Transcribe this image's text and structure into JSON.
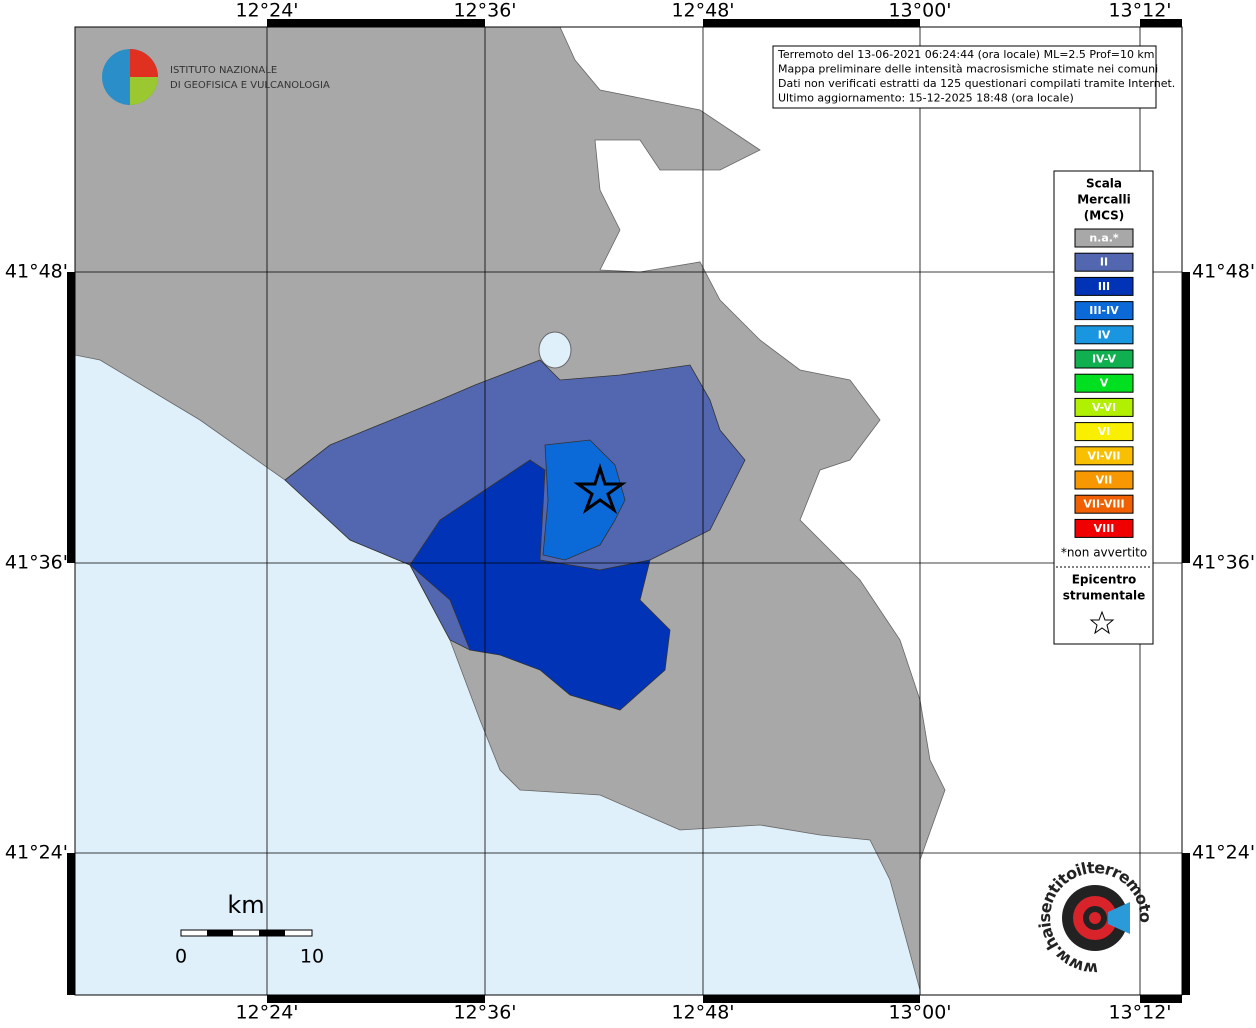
{
  "header": {
    "institute": [
      "ISTITUTO NAZIONALE",
      "DI GEOFISICA E VULCANOLOGIA"
    ],
    "info": [
      "Terremoto del 13-06-2021 06:24:44 (ora locale) ML=2.5 Prof=10 km",
      "Mappa preliminare delle intensità macrosismiche stimate nei comuni",
      "Dati non verificati estratti da 125 questionari compilati tramite Internet.",
      "Ultimo aggiornamento: 15-12-2025 18:48 (ora locale)"
    ]
  },
  "axes": {
    "longitudes": [
      "12°24'",
      "12°36'",
      "12°48'",
      "13°00'",
      "13°12'"
    ],
    "latitudes": [
      "41°48'",
      "41°36'",
      "41°24'"
    ]
  },
  "legend": {
    "title": [
      "Scala",
      "Mercalli",
      "(MCS)"
    ],
    "items": [
      {
        "label": "n.a.*",
        "color": "#a8a8a8"
      },
      {
        "label": "II",
        "color": "#5366b0"
      },
      {
        "label": "III",
        "color": "#0033b5"
      },
      {
        "label": "III-IV",
        "color": "#0b69d8"
      },
      {
        "label": "IV",
        "color": "#1a96e0"
      },
      {
        "label": "IV-V",
        "color": "#10b050"
      },
      {
        "label": "V",
        "color": "#00e020"
      },
      {
        "label": "V-VI",
        "color": "#b0f000"
      },
      {
        "label": "VI",
        "color": "#f8f000"
      },
      {
        "label": "VI-VII",
        "color": "#f8c000"
      },
      {
        "label": "VII",
        "color": "#f89800"
      },
      {
        "label": "VII-VIII",
        "color": "#f06000"
      },
      {
        "label": "VIII",
        "color": "#f00000"
      }
    ],
    "note": "*non avvertito",
    "epicenter": [
      "Epicentro",
      "strumentale"
    ]
  },
  "scale": {
    "unit": "km",
    "labels": [
      "0",
      "10"
    ]
  },
  "logo": "www.haisentitoilterremoto.it"
}
